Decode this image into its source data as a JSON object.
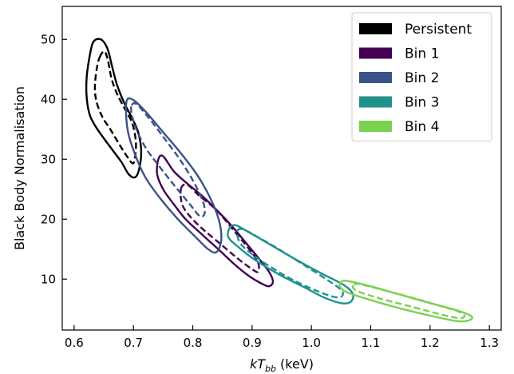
{
  "chart_data": {
    "type": "contour",
    "xlabel": {
      "main": "kT",
      "sub": "bb",
      "suffix": " (keV)"
    },
    "ylabel": "Black Body Normalisation",
    "xlim": [
      0.58,
      1.32
    ],
    "ylim": [
      1.5,
      55.5
    ],
    "xticks": [
      0.6,
      0.7,
      0.8,
      0.9,
      1.0,
      1.1,
      1.2,
      1.3
    ],
    "xtick_labels": [
      "0.6",
      "0.7",
      "0.8",
      "0.9",
      "1.0",
      "1.1",
      "1.2",
      "1.3"
    ],
    "yticks": [
      10,
      20,
      30,
      40,
      50
    ],
    "ytick_labels": [
      "10",
      "20",
      "30",
      "40",
      "50"
    ],
    "grid": false,
    "legend_position": "top-right",
    "series": [
      {
        "name": "Persistent",
        "color": "#000000",
        "solid": [
          [
            0.632,
            49.5
          ],
          [
            0.645,
            50.0
          ],
          [
            0.656,
            48.5
          ],
          [
            0.664,
            45.5
          ],
          [
            0.672,
            42.5
          ],
          [
            0.684,
            39.5
          ],
          [
            0.697,
            37.0
          ],
          [
            0.708,
            34.5
          ],
          [
            0.713,
            31.5
          ],
          [
            0.71,
            28.5
          ],
          [
            0.703,
            27.0
          ],
          [
            0.692,
            27.5
          ],
          [
            0.68,
            29.5
          ],
          [
            0.665,
            31.5
          ],
          [
            0.65,
            33.5
          ],
          [
            0.636,
            35.5
          ],
          [
            0.626,
            37.5
          ],
          [
            0.621,
            40.5
          ],
          [
            0.621,
            43.5
          ],
          [
            0.625,
            46.5
          ]
        ],
        "dashed": [
          [
            0.643,
            47.0
          ],
          [
            0.651,
            48.0
          ],
          [
            0.657,
            46.5
          ],
          [
            0.663,
            43.5
          ],
          [
            0.672,
            41.0
          ],
          [
            0.685,
            38.5
          ],
          [
            0.698,
            36.0
          ],
          [
            0.704,
            33.0
          ],
          [
            0.703,
            30.5
          ],
          [
            0.699,
            29.3
          ],
          [
            0.689,
            30.5
          ],
          [
            0.676,
            32.5
          ],
          [
            0.661,
            35.0
          ],
          [
            0.648,
            37.0
          ],
          [
            0.638,
            39.5
          ],
          [
            0.635,
            42.0
          ],
          [
            0.638,
            45.0
          ]
        ]
      },
      {
        "name": "Bin 1",
        "color": "#440154",
        "solid": [
          [
            0.742,
            30.0
          ],
          [
            0.75,
            30.5
          ],
          [
            0.768,
            28.0
          ],
          [
            0.79,
            26.0
          ],
          [
            0.82,
            23.5
          ],
          [
            0.86,
            19.5
          ],
          [
            0.89,
            16.0
          ],
          [
            0.915,
            13.0
          ],
          [
            0.93,
            11.0
          ],
          [
            0.935,
            9.5
          ],
          [
            0.928,
            8.8
          ],
          [
            0.915,
            9.3
          ],
          [
            0.895,
            10.5
          ],
          [
            0.87,
            12.5
          ],
          [
            0.845,
            14.8
          ],
          [
            0.815,
            17.5
          ],
          [
            0.788,
            20.0
          ],
          [
            0.768,
            22.5
          ],
          [
            0.75,
            25.0
          ],
          [
            0.74,
            27.5
          ]
        ],
        "dashed": [
          [
            0.78,
            25.0
          ],
          [
            0.79,
            25.8
          ],
          [
            0.81,
            24.0
          ],
          [
            0.84,
            21.5
          ],
          [
            0.87,
            18.0
          ],
          [
            0.895,
            15.0
          ],
          [
            0.91,
            12.8
          ],
          [
            0.91,
            11.2
          ],
          [
            0.898,
            11.8
          ],
          [
            0.875,
            13.5
          ],
          [
            0.845,
            16.0
          ],
          [
            0.815,
            18.5
          ],
          [
            0.795,
            20.5
          ],
          [
            0.782,
            22.5
          ]
        ]
      },
      {
        "name": "Bin 2",
        "color": "#3b528b",
        "solid": [
          [
            0.688,
            39.5
          ],
          [
            0.698,
            40.0
          ],
          [
            0.72,
            38.0
          ],
          [
            0.75,
            34.5
          ],
          [
            0.78,
            31.0
          ],
          [
            0.81,
            27.0
          ],
          [
            0.832,
            23.0
          ],
          [
            0.845,
            19.5
          ],
          [
            0.848,
            16.5
          ],
          [
            0.84,
            14.5
          ],
          [
            0.826,
            15.0
          ],
          [
            0.805,
            17.0
          ],
          [
            0.775,
            20.0
          ],
          [
            0.745,
            23.5
          ],
          [
            0.72,
            27.0
          ],
          [
            0.702,
            31.0
          ],
          [
            0.69,
            35.0
          ]
        ],
        "dashed": [
          [
            0.697,
            39.0
          ],
          [
            0.705,
            39.2
          ],
          [
            0.725,
            37.0
          ],
          [
            0.752,
            33.5
          ],
          [
            0.778,
            30.0
          ],
          [
            0.8,
            26.5
          ],
          [
            0.817,
            23.0
          ],
          [
            0.82,
            21.0
          ],
          [
            0.812,
            20.5
          ],
          [
            0.795,
            22.5
          ],
          [
            0.77,
            25.5
          ],
          [
            0.742,
            29.0
          ],
          [
            0.72,
            32.0
          ],
          [
            0.705,
            35.0
          ],
          [
            0.697,
            37.5
          ]
        ]
      },
      {
        "name": "Bin 3",
        "color": "#21918c",
        "solid": [
          [
            0.862,
            18.5
          ],
          [
            0.872,
            19.0
          ],
          [
            0.895,
            17.8
          ],
          [
            0.93,
            15.8
          ],
          [
            0.975,
            13.2
          ],
          [
            1.02,
            10.8
          ],
          [
            1.055,
            9.0
          ],
          [
            1.07,
            7.5
          ],
          [
            1.066,
            6.2
          ],
          [
            1.05,
            6.0
          ],
          [
            1.02,
            7.0
          ],
          [
            0.985,
            8.8
          ],
          [
            0.945,
            10.8
          ],
          [
            0.905,
            13.2
          ],
          [
            0.875,
            15.5
          ],
          [
            0.86,
            17.0
          ]
        ],
        "dashed": [
          [
            0.875,
            18.0
          ],
          [
            0.885,
            18.3
          ],
          [
            0.91,
            17.0
          ],
          [
            0.945,
            15.0
          ],
          [
            0.985,
            12.5
          ],
          [
            1.025,
            10.0
          ],
          [
            1.05,
            8.2
          ],
          [
            1.052,
            7.2
          ],
          [
            1.04,
            7.0
          ],
          [
            1.01,
            8.0
          ],
          [
            0.97,
            9.8
          ],
          [
            0.935,
            11.8
          ],
          [
            0.902,
            14.0
          ],
          [
            0.88,
            16.0
          ]
        ]
      },
      {
        "name": "Bin 4",
        "color": "#7ad151",
        "solid": [
          [
            1.05,
            9.5
          ],
          [
            1.06,
            9.7
          ],
          [
            1.1,
            8.8
          ],
          [
            1.15,
            7.4
          ],
          [
            1.2,
            6.0
          ],
          [
            1.245,
            4.8
          ],
          [
            1.27,
            3.8
          ],
          [
            1.265,
            3.1
          ],
          [
            1.245,
            3.0
          ],
          [
            1.2,
            3.9
          ],
          [
            1.15,
            5.1
          ],
          [
            1.1,
            6.5
          ],
          [
            1.06,
            7.8
          ],
          [
            1.048,
            8.8
          ]
        ],
        "dashed": [
          [
            1.072,
            9.0
          ],
          [
            1.08,
            9.2
          ],
          [
            1.12,
            8.2
          ],
          [
            1.17,
            6.9
          ],
          [
            1.215,
            5.6
          ],
          [
            1.25,
            4.5
          ],
          [
            1.258,
            3.8
          ],
          [
            1.248,
            3.5
          ],
          [
            1.215,
            4.2
          ],
          [
            1.165,
            5.5
          ],
          [
            1.115,
            6.8
          ],
          [
            1.08,
            7.9
          ],
          [
            1.07,
            8.6
          ]
        ]
      }
    ]
  }
}
